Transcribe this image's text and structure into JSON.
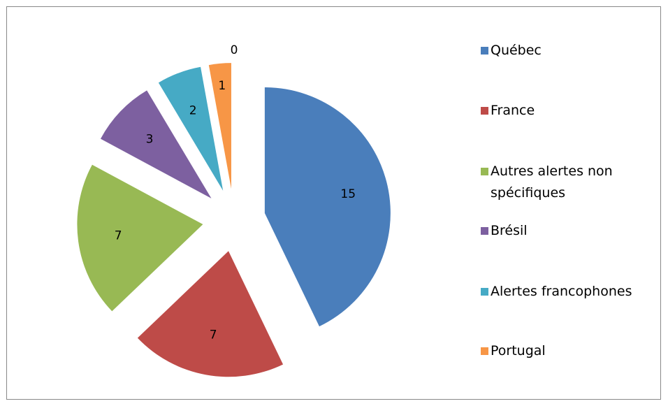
{
  "chart_data": {
    "type": "pie",
    "categories": [
      "Québec",
      "France",
      "Autres alertes non spécifiques",
      "Brésil",
      "Alertes francophones",
      "Portugal",
      null
    ],
    "values": [
      15,
      7,
      7,
      3,
      2,
      1,
      0
    ],
    "colors": [
      "#4a7ebb",
      "#be4b48",
      "#98b954",
      "#7d60a0",
      "#46aac5",
      "#f79646",
      "#a5a5a5"
    ],
    "exploded": true
  }
}
